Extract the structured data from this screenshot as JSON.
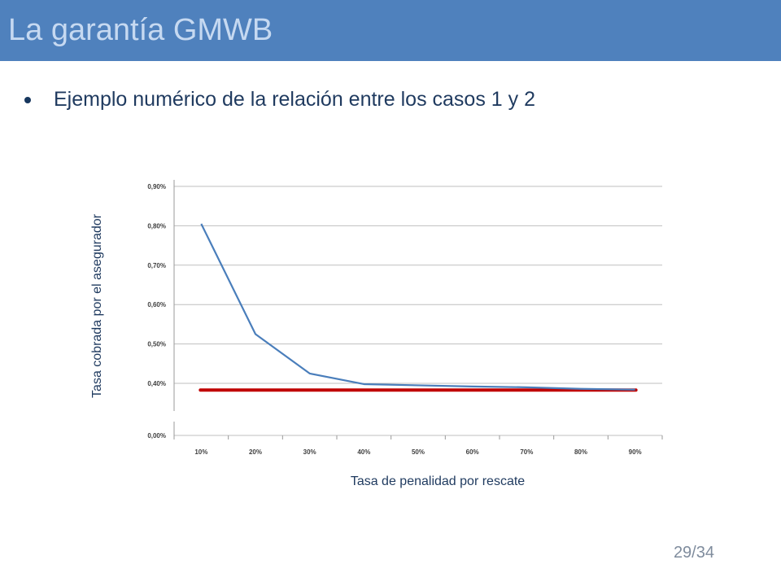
{
  "slide": {
    "title": "La garantía GMWB",
    "bullet": "Ejemplo numérico de la relación entre los casos 1 y 2",
    "page_number": "29/34"
  },
  "colors": {
    "header_bg": "#4f81bd",
    "title_text": "#c6d9f1",
    "series_line": "#4a7ebb",
    "reference_line": "#c00000"
  },
  "chart_data": {
    "type": "line",
    "xlabel": "Tasa de penalidad por rescate",
    "ylabel": "Tasa cobrada por el asegurador",
    "categories": [
      "10%",
      "20%",
      "30%",
      "40%",
      "50%",
      "60%",
      "70%",
      "80%",
      "90%"
    ],
    "y_ticks": [
      "0,00%",
      "0,40%",
      "0,50%",
      "0,60%",
      "0,70%",
      "0,80%",
      "0,90%"
    ],
    "y_tick_values": [
      0.0,
      0.4,
      0.5,
      0.6,
      0.7,
      0.8,
      0.9
    ],
    "y_axis_broken": true,
    "grid": true,
    "series": [
      {
        "values": [
          0.805,
          0.525,
          0.425,
          0.398,
          0.395,
          0.392,
          0.39,
          0.386,
          0.384
        ]
      }
    ],
    "reference_line": {
      "value": 0.383
    }
  }
}
